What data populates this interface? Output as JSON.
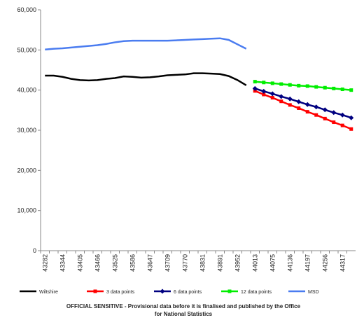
{
  "chart_data": {
    "type": "line",
    "categories": [
      "43282",
      null,
      "43344",
      null,
      "43405",
      null,
      "43466",
      null,
      "43525",
      null,
      "43586",
      null,
      "43647",
      null,
      "43709",
      null,
      "43770",
      null,
      "43831",
      null,
      "43891",
      null,
      "43952",
      null,
      "44013",
      null,
      "44075",
      null,
      "44136",
      null,
      "44197",
      null,
      "44256",
      null,
      "44317",
      null
    ],
    "ylim": [
      0,
      60000
    ],
    "yticks": [
      0,
      {
        "value": 10000,
        "label": "10,000"
      },
      {
        "value": 20000,
        "label": "20,000"
      },
      {
        "value": 30000,
        "label": "30,000"
      },
      {
        "value": 40000,
        "label": "40,000"
      },
      {
        "value": 50000,
        "label": "50,000"
      },
      {
        "value": 60000,
        "label": "60,000"
      }
    ],
    "grid": false,
    "legend": "bottom",
    "series": [
      {
        "name": "Wiltshire",
        "color": "#000000",
        "marker": "none",
        "values": [
          43600,
          43600,
          43300,
          42800,
          42500,
          42400,
          42500,
          42800,
          43000,
          43400,
          43300,
          43100,
          43200,
          43400,
          43700,
          43800,
          43900,
          44200,
          44200,
          44100,
          44000,
          43500,
          42500,
          41200,
          null,
          null,
          null,
          null,
          null,
          null,
          null,
          null,
          null,
          null,
          null,
          null
        ]
      },
      {
        "name": "3 data points",
        "color": "#ff0000",
        "marker": "square",
        "values": [
          null,
          null,
          null,
          null,
          null,
          null,
          null,
          null,
          null,
          null,
          null,
          null,
          null,
          null,
          null,
          null,
          null,
          null,
          null,
          null,
          null,
          null,
          null,
          null,
          39800,
          38900,
          38100,
          37200,
          36300,
          35500,
          34600,
          33800,
          32900,
          32000,
          31200,
          30300
        ]
      },
      {
        "name": "6 data points",
        "color": "#000080",
        "marker": "diamond",
        "values": [
          null,
          null,
          null,
          null,
          null,
          null,
          null,
          null,
          null,
          null,
          null,
          null,
          null,
          null,
          null,
          null,
          null,
          null,
          null,
          null,
          null,
          null,
          null,
          null,
          40400,
          39700,
          39100,
          38400,
          37800,
          37100,
          36400,
          35800,
          35100,
          34400,
          33800,
          33100
        ]
      },
      {
        "name": "12 data points",
        "color": "#00ee00",
        "marker": "square",
        "values": [
          null,
          null,
          null,
          null,
          null,
          null,
          null,
          null,
          null,
          null,
          null,
          null,
          null,
          null,
          null,
          null,
          null,
          null,
          null,
          null,
          null,
          null,
          null,
          null,
          42100,
          41900,
          41700,
          41500,
          41300,
          41100,
          41000,
          40800,
          40600,
          40400,
          40200,
          40000
        ]
      },
      {
        "name": "MSD",
        "color": "#4a7cf0",
        "marker": "none",
        "values": [
          50100,
          50300,
          50400,
          50600,
          50800,
          51000,
          51200,
          51500,
          51900,
          52200,
          52300,
          52300,
          52300,
          52300,
          52300,
          52400,
          52500,
          52600,
          52700,
          52800,
          52900,
          52500,
          51400,
          50300,
          null,
          null,
          null,
          null,
          null,
          null,
          null,
          null,
          null,
          null,
          null,
          null
        ]
      }
    ],
    "footnote": [
      "OFFICIAL SENSITIVE - Provisional data before it is finalised and published by the Office",
      "for National Statistics"
    ]
  }
}
